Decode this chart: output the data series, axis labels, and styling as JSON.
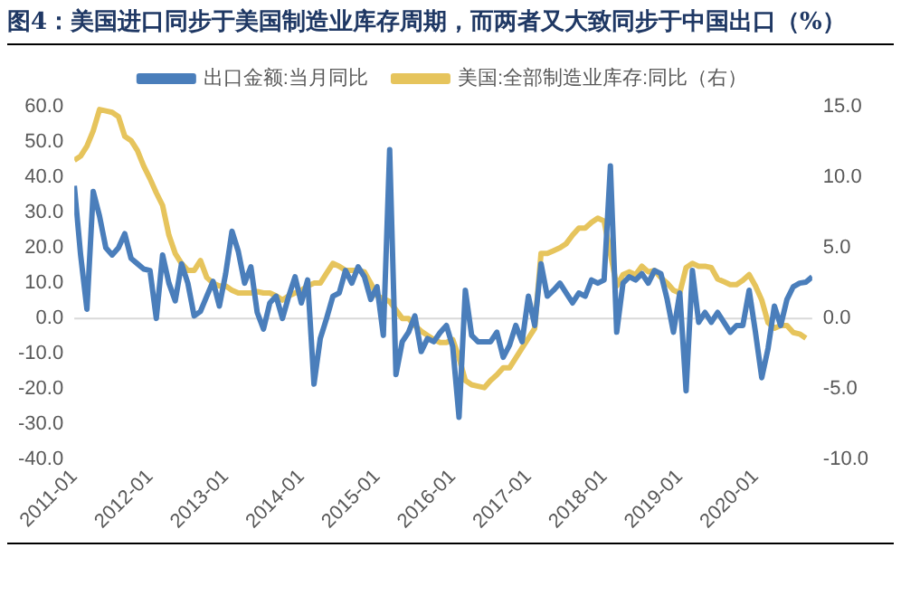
{
  "chart_data": {
    "type": "line",
    "title": "图4：美国进口同步于美国制造业库存周期，而两者又大致同步于中国出口（%）",
    "x": [
      "2011-01",
      "2011-02",
      "2011-03",
      "2011-04",
      "2011-05",
      "2011-06",
      "2011-07",
      "2011-08",
      "2011-09",
      "2011-10",
      "2011-11",
      "2011-12",
      "2012-01",
      "2012-02",
      "2012-03",
      "2012-04",
      "2012-05",
      "2012-06",
      "2012-07",
      "2012-08",
      "2012-09",
      "2012-10",
      "2012-11",
      "2012-12",
      "2013-01",
      "2013-02",
      "2013-03",
      "2013-04",
      "2013-05",
      "2013-06",
      "2013-07",
      "2013-08",
      "2013-09",
      "2013-10",
      "2013-11",
      "2013-12",
      "2014-01",
      "2014-02",
      "2014-03",
      "2014-04",
      "2014-05",
      "2014-06",
      "2014-07",
      "2014-08",
      "2014-09",
      "2014-10",
      "2014-11",
      "2014-12",
      "2015-01",
      "2015-02",
      "2015-03",
      "2015-04",
      "2015-05",
      "2015-06",
      "2015-07",
      "2015-08",
      "2015-09",
      "2015-10",
      "2015-11",
      "2015-12",
      "2016-01",
      "2016-02",
      "2016-03",
      "2016-04",
      "2016-05",
      "2016-06",
      "2016-07",
      "2016-08",
      "2016-09",
      "2016-10",
      "2016-11",
      "2016-12",
      "2017-01",
      "2017-02",
      "2017-03",
      "2017-04",
      "2017-05",
      "2017-06",
      "2017-07",
      "2017-08",
      "2017-09",
      "2017-10",
      "2017-11",
      "2017-12",
      "2018-01",
      "2018-02",
      "2018-03",
      "2018-04",
      "2018-05",
      "2018-06",
      "2018-07",
      "2018-08",
      "2018-09",
      "2018-10",
      "2018-11",
      "2018-12",
      "2019-01",
      "2019-02",
      "2019-03",
      "2019-04",
      "2019-05",
      "2019-06",
      "2019-07",
      "2019-08",
      "2019-09",
      "2019-10",
      "2019-11",
      "2019-12",
      "2020-01",
      "2020-02",
      "2020-03",
      "2020-04",
      "2020-05",
      "2020-06",
      "2020-07",
      "2020-08",
      "2020-09",
      "2020-10"
    ],
    "series": [
      {
        "name": "出口金额:当月同比",
        "color": "#4a7ebb",
        "values": [
          37.6,
          18,
          2.6,
          36,
          29,
          20,
          18,
          20,
          24,
          17,
          15.5,
          14,
          13.6,
          0,
          18,
          10,
          5,
          15.5,
          10,
          0.7,
          2,
          6.3,
          10.5,
          3.5,
          12.7,
          24.7,
          19,
          10,
          14.6,
          1.7,
          -3,
          4.4,
          6.3,
          0,
          6.3,
          11.8,
          4.4,
          10.9,
          -18.6,
          -5.7,
          0,
          6.3,
          7.2,
          13.6,
          10,
          14.6,
          11.8,
          5.4,
          9,
          -4.8,
          47.8,
          -15.9,
          -6.6,
          -3.9,
          0.7,
          -9.4,
          -5.7,
          -6.6,
          -4,
          -2,
          -8,
          -28,
          8,
          -4.8,
          -6.6,
          -6.6,
          -6.6,
          -3.9,
          -11,
          -7.6,
          -2,
          -6.6,
          6.3,
          -2,
          15.5,
          6.3,
          8,
          10,
          7.2,
          4.4,
          7.2,
          6.3,
          10.9,
          10,
          10.9,
          43.2,
          -3.9,
          10,
          11.8,
          10.9,
          12.7,
          10,
          13.6,
          12.7,
          5.4,
          -3.9,
          7.2,
          -20.5,
          13.6,
          -1.1,
          1.7,
          -1.1,
          1.7,
          -1.1,
          -3.9,
          -2,
          -2,
          8,
          -3.9,
          -16.8,
          -8.5,
          3.5,
          -2,
          5.4,
          9,
          10,
          10.3,
          11.8
        ]
      },
      {
        "name": "美国:全部制造业库存:同比（右）",
        "color": "#e6c45c",
        "axis": "y2",
        "values": [
          11.2,
          11.5,
          12.2,
          13.3,
          14.8,
          14.7,
          14.6,
          14.3,
          12.9,
          12.6,
          11.9,
          10.8,
          9.9,
          8.9,
          8,
          5.9,
          4.6,
          3.9,
          3.4,
          3.4,
          4.1,
          2.9,
          2.5,
          2.3,
          2.3,
          2,
          1.8,
          1.8,
          1.8,
          1.9,
          1.8,
          1.8,
          1.6,
          1.3,
          1.6,
          1.8,
          2,
          2.3,
          2.5,
          2.5,
          3.2,
          3.9,
          3.7,
          3.4,
          3.4,
          3.4,
          3.3,
          2.5,
          1.6,
          1.4,
          1.2,
          0.6,
          0,
          0,
          -0.5,
          -0.9,
          -1.2,
          -1.5,
          -1.7,
          -1.7,
          -1.5,
          -2.8,
          -4.4,
          -4.7,
          -4.8,
          -4.9,
          -4.4,
          -4,
          -3.5,
          -3.5,
          -2.8,
          -2.1,
          -1.4,
          -0.7,
          4.6,
          4.6,
          4.8,
          5,
          5.3,
          5.9,
          6.4,
          6.4,
          6.8,
          7.1,
          6.9,
          4.6,
          2.3,
          3.1,
          3.3,
          3.1,
          3.7,
          3.3,
          3.4,
          2.9,
          2.5,
          2,
          1.8,
          3.6,
          3.9,
          3.7,
          3.7,
          3.6,
          2.8,
          2.6,
          2.4,
          2.4,
          2.7,
          3.1,
          2.3,
          1.3,
          -0.3,
          -0.7,
          -0.5,
          -0.5,
          -1,
          -1.1,
          -1.4,
          null
        ]
      }
    ],
    "xlim": [
      "2011-01",
      "2020-10"
    ],
    "xticks": [
      "2011-01",
      "2012-01",
      "2013-01",
      "2014-01",
      "2015-01",
      "2016-01",
      "2017-01",
      "2018-01",
      "2019-01",
      "2020-01"
    ],
    "ylim": [
      -40,
      60
    ],
    "yticks": [
      {
        "value": -40,
        "label": "-40.0"
      },
      {
        "value": -30,
        "label": "-30.0"
      },
      {
        "value": -20,
        "label": "-20.0"
      },
      {
        "value": -10,
        "label": "-10.0"
      },
      {
        "value": 0,
        "label": "0.0"
      },
      {
        "value": 10,
        "label": "10.0"
      },
      {
        "value": 20,
        "label": "20.0"
      },
      {
        "value": 30,
        "label": "30.0"
      },
      {
        "value": 40,
        "label": "40.0"
      },
      {
        "value": 50,
        "label": "50.0"
      },
      {
        "value": 60,
        "label": "60.0"
      }
    ],
    "y2lim": [
      -10,
      15
    ],
    "y2ticks": [
      {
        "value": -10,
        "label": "-10.0"
      },
      {
        "value": -5,
        "label": "-5.0"
      },
      {
        "value": 0,
        "label": "0.0"
      },
      {
        "value": 5,
        "label": "5.0"
      },
      {
        "value": 10,
        "label": "10.0"
      },
      {
        "value": 15,
        "label": "15.0"
      }
    ],
    "ref_lines": [
      {
        "axis": "y",
        "value": 0,
        "color": "#d9d9d9"
      }
    ],
    "legend": "top",
    "marker": "none",
    "line_style": "solid",
    "grid": false
  }
}
